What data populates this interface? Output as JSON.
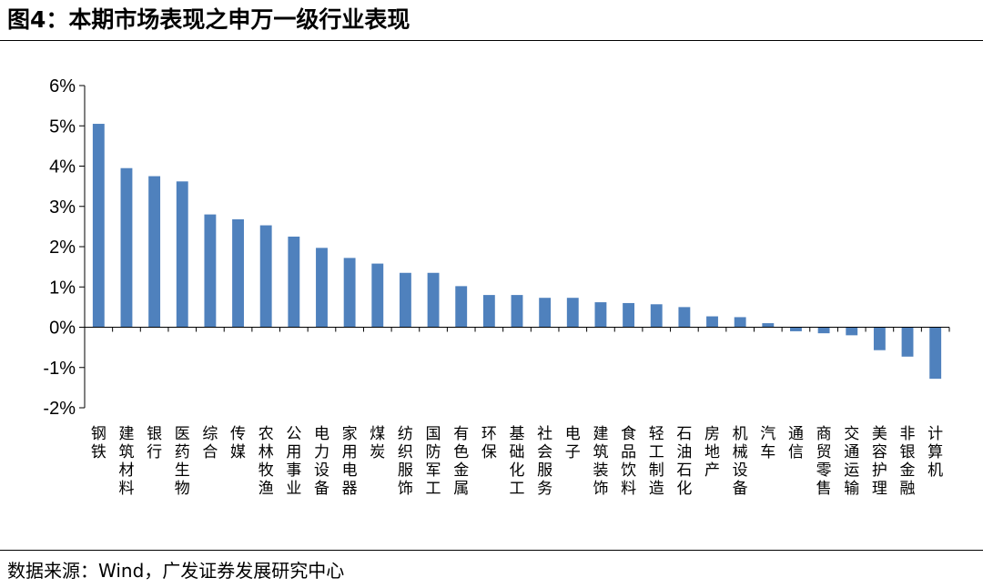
{
  "figure": {
    "title": "图4：本期市场表现之申万一级行业表现",
    "source": "数据来源：Wind，广发证券发展研究中心"
  },
  "chart_data": {
    "type": "bar",
    "title": "",
    "xlabel": "",
    "ylabel": "",
    "ylim": [
      -2,
      6
    ],
    "y_ticks": [
      "-2%",
      "-1%",
      "0%",
      "1%",
      "2%",
      "3%",
      "4%",
      "5%",
      "6%"
    ],
    "grid": false,
    "bar_color": "#4F81BD",
    "categories": [
      "钢铁",
      "建筑材料",
      "银行",
      "医药生物",
      "综合",
      "传媒",
      "农林牧渔",
      "公用事业",
      "电力设备",
      "家用电器",
      "煤炭",
      "纺织服饰",
      "国防军工",
      "有色金属",
      "环保",
      "基础化工",
      "社会服务",
      "电子",
      "建筑装饰",
      "食品饮料",
      "轻工制造",
      "石油石化",
      "房地产",
      "机械设备",
      "汽车",
      "通信",
      "商贸零售",
      "交通运输",
      "美容护理",
      "非银金融",
      "计算机"
    ],
    "values": [
      5.05,
      3.95,
      3.75,
      3.62,
      2.8,
      2.68,
      2.53,
      2.25,
      1.97,
      1.72,
      1.58,
      1.35,
      1.35,
      1.02,
      0.8,
      0.8,
      0.73,
      0.73,
      0.62,
      0.6,
      0.57,
      0.5,
      0.27,
      0.25,
      0.1,
      -0.1,
      -0.15,
      -0.2,
      -0.57,
      -0.73,
      -1.28
    ]
  }
}
